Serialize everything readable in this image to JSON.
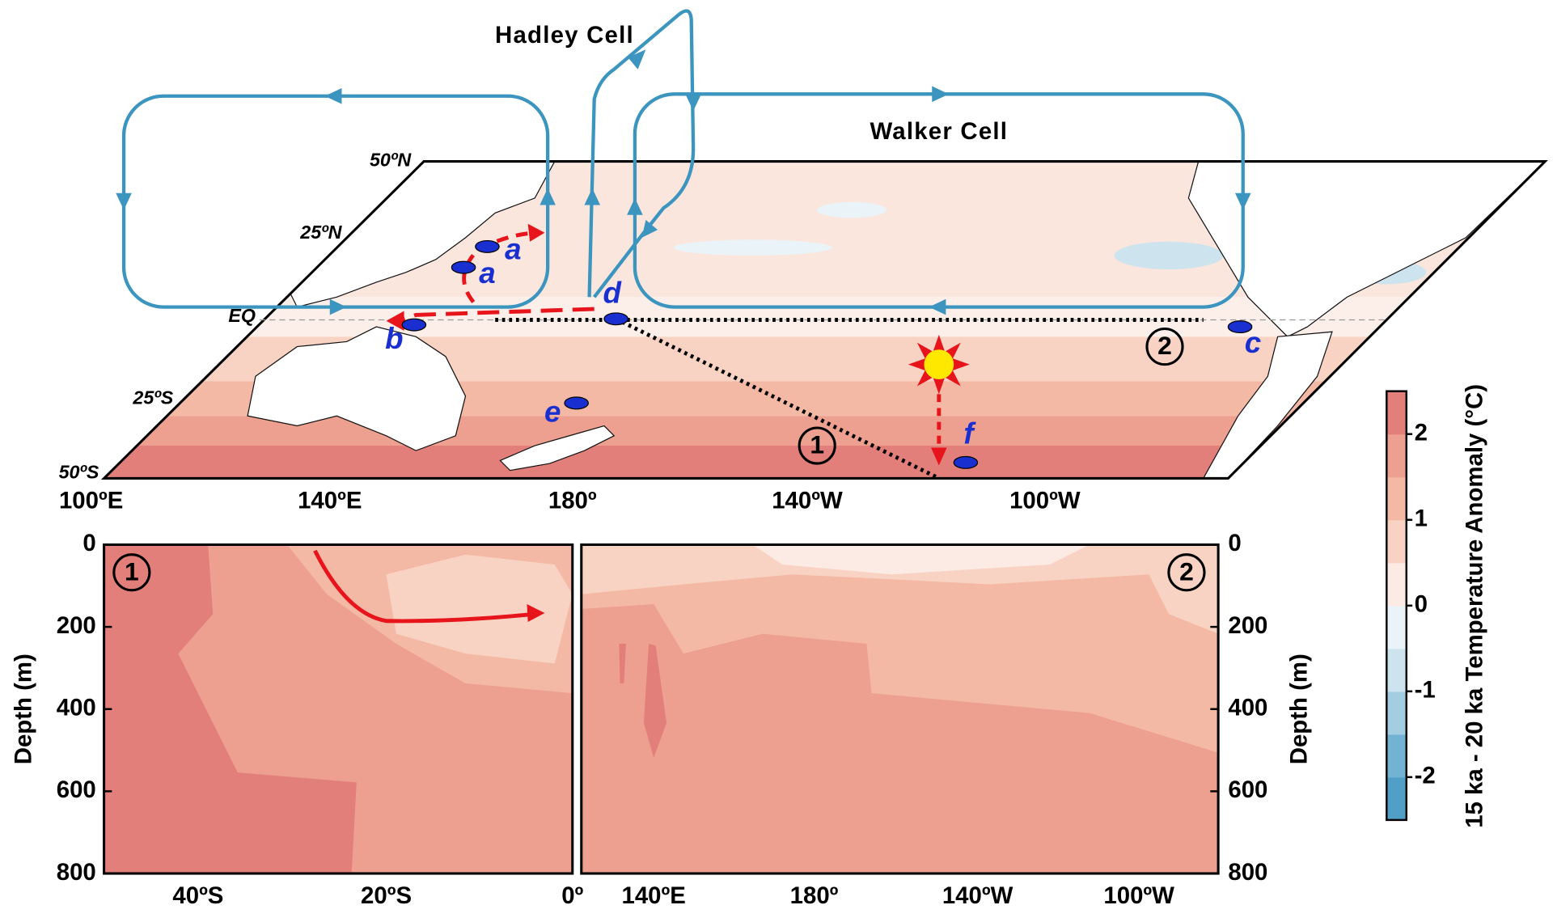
{
  "circulation": {
    "hadley": "Hadley Cell",
    "walker": "Walker Cell"
  },
  "map": {
    "lat_labels": [
      "50ºN",
      "25ºN",
      "EQ",
      "25ºS",
      "50ºS"
    ],
    "lon_labels": [
      "100ºE",
      "140ºE",
      "180º",
      "140ºW",
      "100ºW"
    ],
    "sites": [
      {
        "label": "a"
      },
      {
        "label": "a"
      },
      {
        "label": "b"
      },
      {
        "label": "c"
      },
      {
        "label": "d"
      },
      {
        "label": "e"
      },
      {
        "label": "f"
      }
    ],
    "transects": [
      "1",
      "2"
    ]
  },
  "sections": [
    {
      "label": "1",
      "x_labels": [
        "40ºS",
        "20ºS",
        "0º"
      ]
    },
    {
      "label": "2",
      "x_labels": [
        "140ºE",
        "180º",
        "140ºW",
        "100ºW"
      ]
    }
  ],
  "depth_axis": {
    "label": "Depth (m)",
    "lim": [
      0,
      800
    ],
    "ticks": [
      0,
      200,
      400,
      600,
      800
    ]
  },
  "colorbar": {
    "label": "15 ka - 20 ka Temperature Anomaly (°C)",
    "lim": [
      -2.5,
      2.5
    ],
    "ticks": [
      2,
      1,
      0,
      -1,
      -2
    ],
    "colors": [
      "#4f9fc7",
      "#72b3d4",
      "#a3cde1",
      "#cde3ee",
      "#eaf3f7",
      "#fcebe4",
      "#f8d3c3",
      "#f3b9a4",
      "#eda08f",
      "#e27f7b"
    ]
  }
}
